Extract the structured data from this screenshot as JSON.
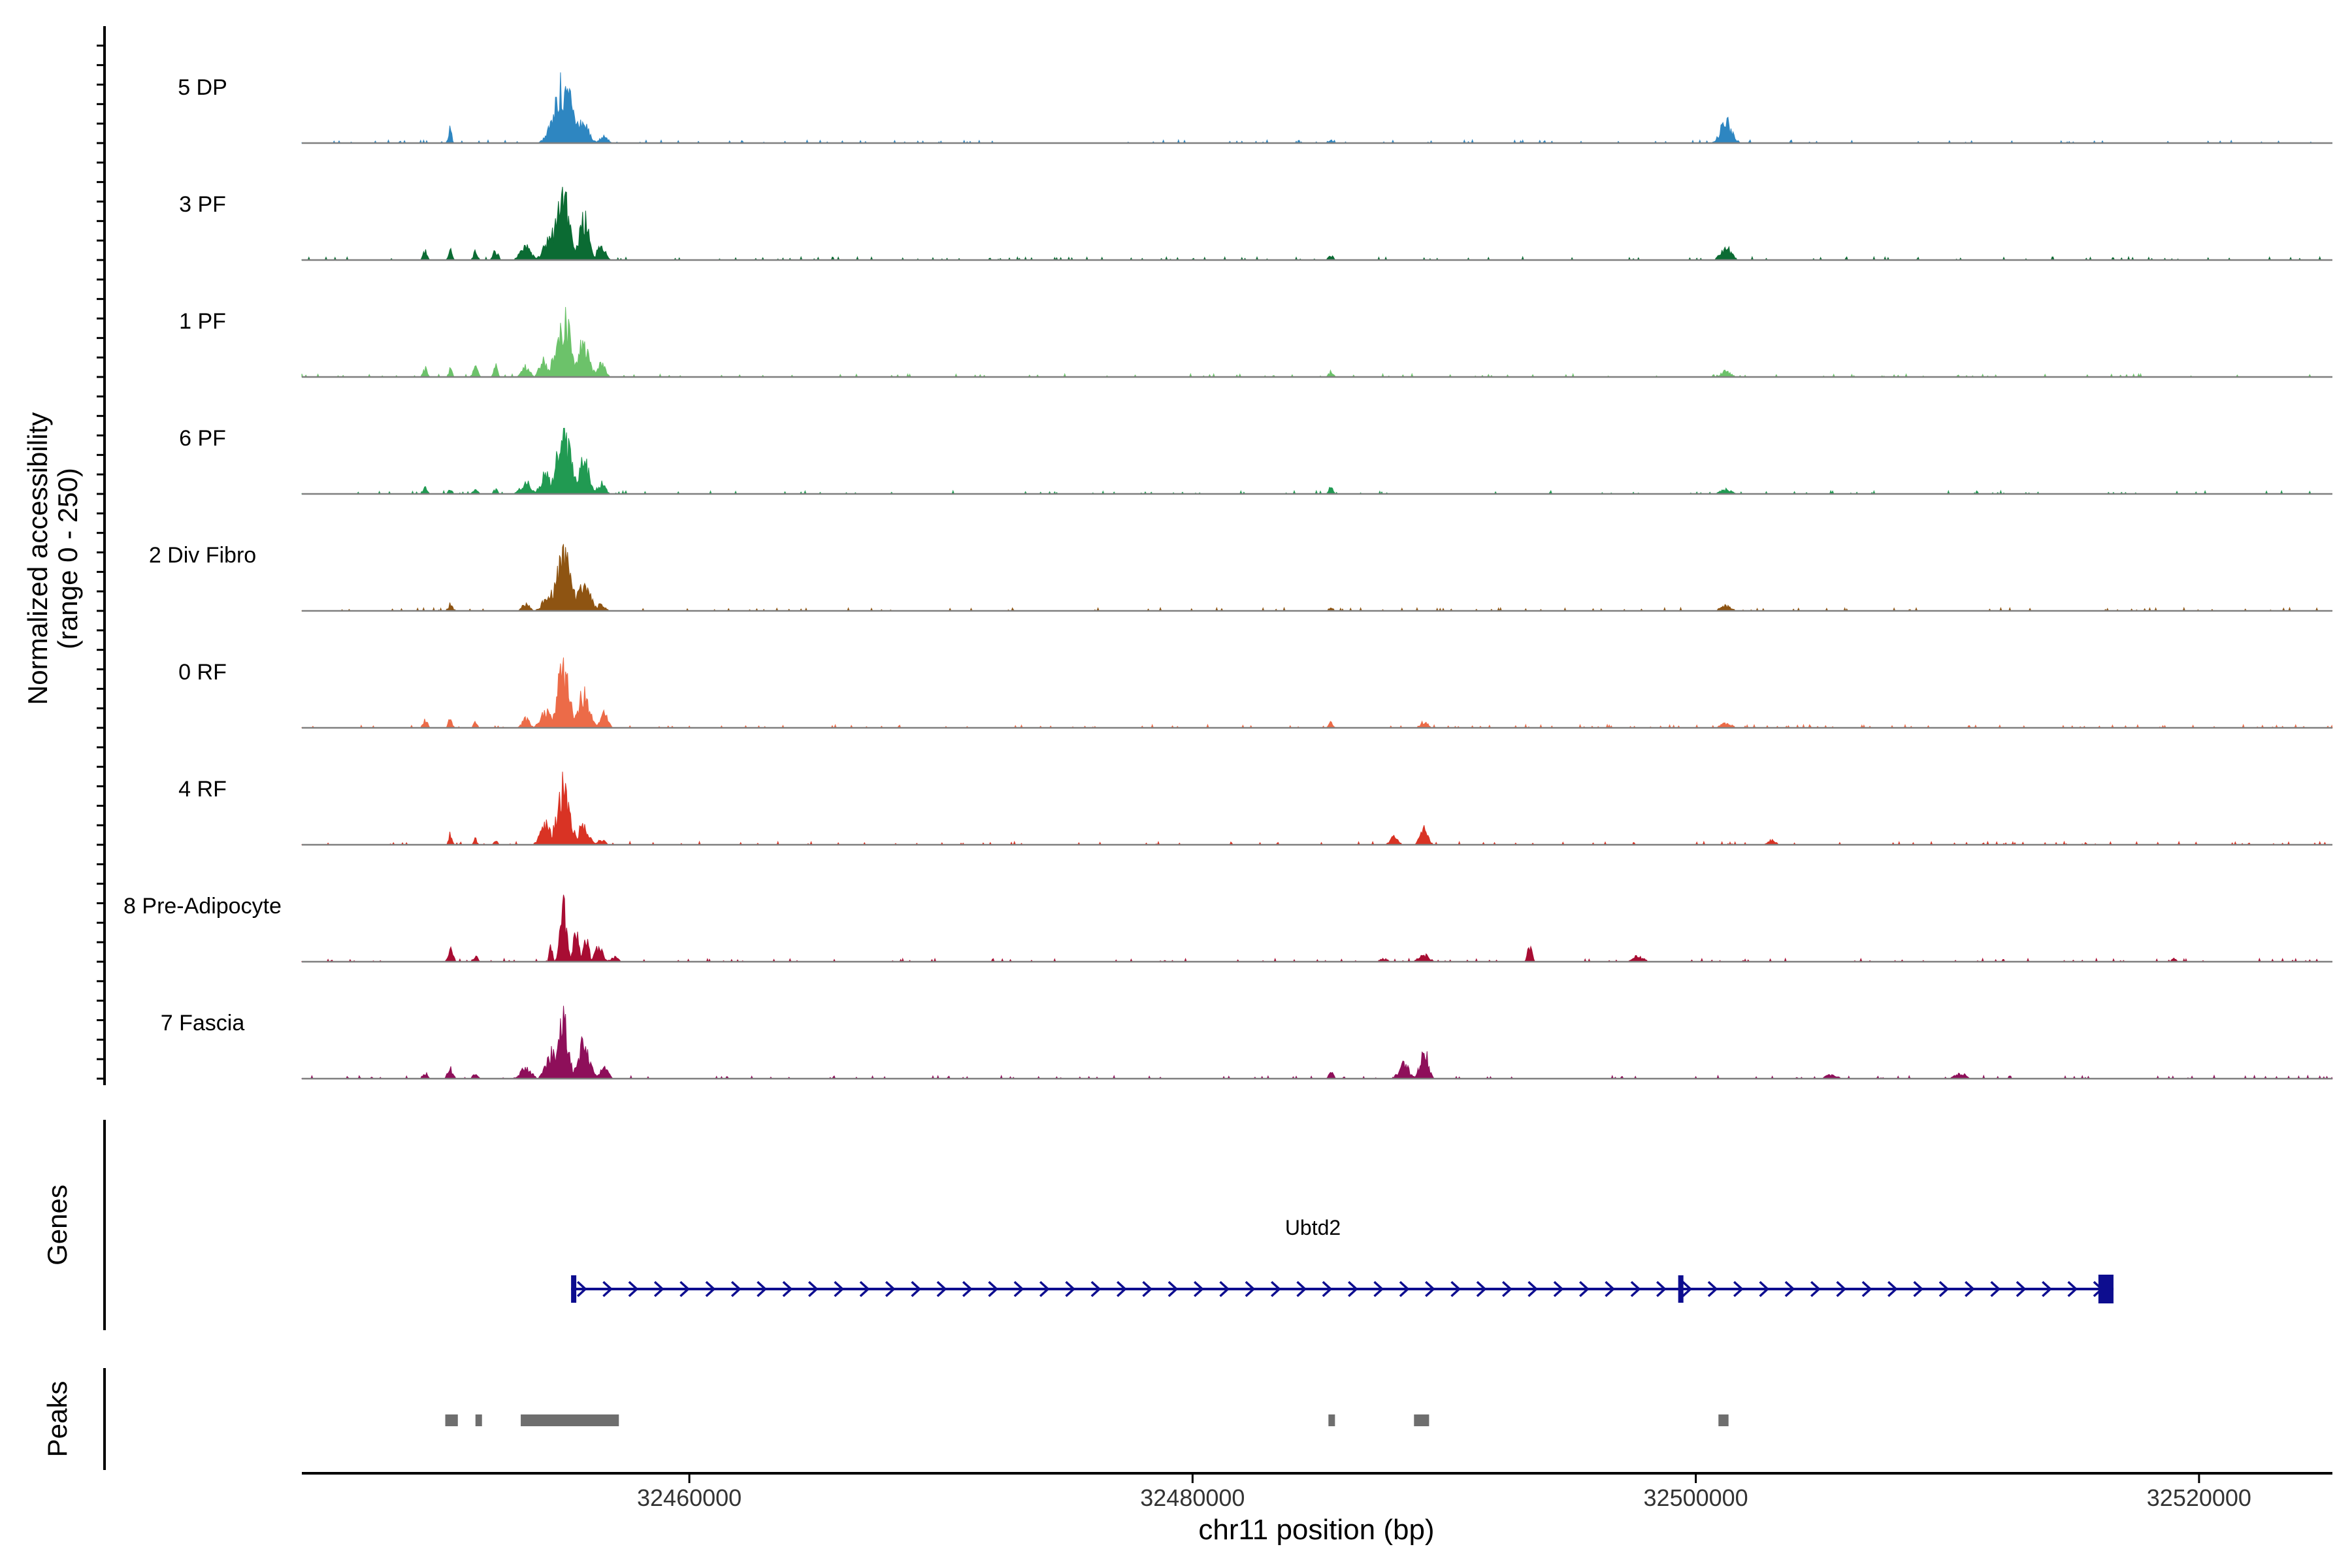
{
  "chart_data": {
    "type": "area",
    "subtype": "genome-coverage-track",
    "ylabel_line1": "Normalized accessibility",
    "ylabel_line2": "(range 0 - 250)",
    "ylim": [
      0,
      250
    ],
    "xlabel": "chr11 position (bp)",
    "xlim": [
      32444600,
      32525300
    ],
    "xticks": [
      32460000,
      32480000,
      32500000,
      32520000
    ],
    "xtick_labels": [
      "32460000",
      "32480000",
      "32500000",
      "32520000"
    ],
    "grid": false,
    "legend": "none",
    "tracks": [
      {
        "name": "5 DP",
        "color": "#2E86C1",
        "peaks": [
          [
            32450500,
            0.25,
            60
          ],
          [
            32455000,
            1.0,
            350
          ],
          [
            32455700,
            0.45,
            250
          ],
          [
            32456600,
            0.12,
            150
          ],
          [
            32485500,
            0.05,
            80
          ],
          [
            32501200,
            0.38,
            220
          ]
        ]
      },
      {
        "name": "3 PF",
        "color": "#0B6B33",
        "peaks": [
          [
            32449500,
            0.15,
            80
          ],
          [
            32450500,
            0.18,
            70
          ],
          [
            32451500,
            0.14,
            80
          ],
          [
            32452300,
            0.17,
            100
          ],
          [
            32453500,
            0.25,
            200
          ],
          [
            32454500,
            0.45,
            250
          ],
          [
            32455000,
            1.0,
            300
          ],
          [
            32455800,
            0.72,
            200
          ],
          [
            32456500,
            0.28,
            150
          ],
          [
            32485500,
            0.08,
            100
          ],
          [
            32501200,
            0.22,
            200
          ]
        ]
      },
      {
        "name": "1 PF",
        "color": "#6CC26A",
        "peaks": [
          [
            32449500,
            0.15,
            80
          ],
          [
            32450500,
            0.13,
            70
          ],
          [
            32451500,
            0.26,
            80
          ],
          [
            32452300,
            0.2,
            70
          ],
          [
            32453500,
            0.18,
            150
          ],
          [
            32454200,
            0.32,
            150
          ],
          [
            32455000,
            1.0,
            280
          ],
          [
            32455800,
            0.6,
            220
          ],
          [
            32456500,
            0.22,
            150
          ],
          [
            32485500,
            0.1,
            80
          ],
          [
            32501200,
            0.1,
            180
          ]
        ]
      },
      {
        "name": "6 PF",
        "color": "#219A52",
        "peaks": [
          [
            32449500,
            0.1,
            100
          ],
          [
            32450500,
            0.1,
            70
          ],
          [
            32451500,
            0.1,
            80
          ],
          [
            32452300,
            0.08,
            80
          ],
          [
            32453500,
            0.2,
            200
          ],
          [
            32454300,
            0.35,
            200
          ],
          [
            32455000,
            1.0,
            280
          ],
          [
            32455800,
            0.55,
            220
          ],
          [
            32456500,
            0.18,
            150
          ],
          [
            32485500,
            0.12,
            80
          ],
          [
            32501200,
            0.08,
            220
          ]
        ]
      },
      {
        "name": "2 Div Fibro",
        "color": "#8E5412",
        "peaks": [
          [
            32450500,
            0.12,
            80
          ],
          [
            32453500,
            0.12,
            150
          ],
          [
            32454500,
            0.35,
            250
          ],
          [
            32455000,
            1.0,
            300
          ],
          [
            32455800,
            0.45,
            250
          ],
          [
            32456500,
            0.12,
            150
          ],
          [
            32485500,
            0.08,
            80
          ],
          [
            32501200,
            0.1,
            200
          ]
        ]
      },
      {
        "name": "0 RF",
        "color": "#EC6B48",
        "peaks": [
          [
            32449500,
            0.16,
            80
          ],
          [
            32450500,
            0.16,
            70
          ],
          [
            32451500,
            0.1,
            70
          ],
          [
            32453500,
            0.15,
            150
          ],
          [
            32454300,
            0.3,
            200
          ],
          [
            32455000,
            1.0,
            250
          ],
          [
            32455800,
            0.58,
            220
          ],
          [
            32456600,
            0.25,
            150
          ],
          [
            32485500,
            0.12,
            80
          ],
          [
            32489200,
            0.1,
            150
          ],
          [
            32501200,
            0.08,
            200
          ]
        ]
      },
      {
        "name": "4 RF",
        "color": "#D93324",
        "peaks": [
          [
            32450500,
            0.2,
            60
          ],
          [
            32451500,
            0.1,
            70
          ],
          [
            32452300,
            0.08,
            70
          ],
          [
            32454300,
            0.35,
            200
          ],
          [
            32455000,
            1.0,
            250
          ],
          [
            32455800,
            0.35,
            200
          ],
          [
            32456500,
            0.08,
            150
          ],
          [
            32488000,
            0.14,
            150
          ],
          [
            32489200,
            0.28,
            150
          ],
          [
            32503000,
            0.08,
            150
          ]
        ]
      },
      {
        "name": "8 Pre-Adipocyte",
        "color": "#A80D33",
        "peaks": [
          [
            32450500,
            0.22,
            100
          ],
          [
            32451500,
            0.1,
            100
          ],
          [
            32454500,
            0.28,
            60
          ],
          [
            32455000,
            1.0,
            120
          ],
          [
            32455500,
            0.55,
            120
          ],
          [
            32455900,
            0.45,
            100
          ],
          [
            32456400,
            0.25,
            150
          ],
          [
            32457000,
            0.08,
            150
          ],
          [
            32487600,
            0.05,
            150
          ],
          [
            32489200,
            0.12,
            200
          ],
          [
            32493400,
            0.3,
            80
          ],
          [
            32497700,
            0.1,
            200
          ],
          [
            32519000,
            0.05,
            100
          ]
        ]
      },
      {
        "name": "7 Fascia",
        "color": "#8E0F5A",
        "peaks": [
          [
            32449500,
            0.1,
            100
          ],
          [
            32450500,
            0.18,
            100
          ],
          [
            32451500,
            0.08,
            100
          ],
          [
            32453500,
            0.2,
            200
          ],
          [
            32454500,
            0.45,
            200
          ],
          [
            32455000,
            1.0,
            200
          ],
          [
            32455800,
            0.6,
            220
          ],
          [
            32456600,
            0.22,
            150
          ],
          [
            32485500,
            0.1,
            100
          ],
          [
            32488400,
            0.25,
            200
          ],
          [
            32489200,
            0.55,
            150
          ],
          [
            32505400,
            0.08,
            200
          ],
          [
            32510500,
            0.1,
            200
          ]
        ]
      }
    ],
    "genes_track": {
      "label": "Genes",
      "gene": "Ubtd2",
      "color": "#0D0D8F",
      "start": 32455300,
      "end": 32516600,
      "exons": [
        [
          32455300,
          32455400
        ],
        [
          32499300,
          32499400
        ],
        [
          32516000,
          32516600
        ]
      ]
    },
    "peaks_track": {
      "label": "Peaks",
      "color": "#6E6E6E",
      "regions": [
        [
          32450300,
          32450800
        ],
        [
          32451500,
          32451750
        ],
        [
          32453300,
          32457200
        ],
        [
          32485400,
          32485650
        ],
        [
          32488800,
          32489400
        ],
        [
          32500900,
          32501300
        ]
      ]
    }
  }
}
